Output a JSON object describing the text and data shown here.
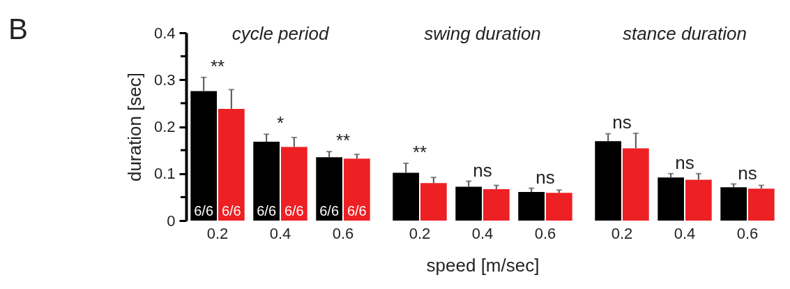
{
  "chart_data": [
    {
      "type": "bar",
      "title": "cycle period",
      "ylabel": "duration [sec]",
      "categories": [
        "0.2",
        "0.4",
        "0.6"
      ],
      "series": [
        {
          "color": "#000000",
          "values": [
            0.276,
            0.168,
            0.135
          ],
          "errors": [
            0.029,
            0.016,
            0.012
          ]
        },
        {
          "color": "#ed2024",
          "values": [
            0.238,
            0.157,
            0.132
          ],
          "errors": [
            0.041,
            0.02,
            0.009
          ]
        }
      ],
      "ylim": [
        0,
        0.4
      ],
      "yticks": [
        0,
        {
          "value": 0.05,
          "label": null
        },
        0.1,
        {
          "value": 0.15,
          "label": null
        },
        0.2,
        {
          "value": 0.25,
          "label": null
        },
        0.3,
        {
          "value": 0.35,
          "label": null
        },
        0.4
      ],
      "annotations": [
        "B",
        "**",
        "*",
        "**",
        {
          "text": "6/6",
          "x": "0.2",
          "y": 0
        },
        {
          "text": "6/6",
          "x": "0.2",
          "y": 0
        },
        {
          "text": "6/6",
          "x": "0.4",
          "y": 0
        },
        {
          "text": "6/6",
          "x": "0.4",
          "y": 0
        },
        {
          "text": "6/6",
          "x": "0.6",
          "y": 0
        },
        {
          "text": "6/6",
          "x": "0.6",
          "y": 0
        }
      ],
      "grid": false,
      "legend": false
    },
    {
      "type": "bar",
      "title": "swing duration",
      "xlabel": "speed [m/sec]",
      "categories": [
        "0.2",
        "0.4",
        "0.6"
      ],
      "series": [
        {
          "color": "#000000",
          "values": [
            0.102,
            0.072,
            0.061
          ],
          "errors": [
            0.02,
            0.012,
            0.008
          ]
        },
        {
          "color": "#ed2024",
          "values": [
            0.08,
            0.067,
            0.059
          ],
          "errors": [
            0.012,
            0.008,
            0.006
          ]
        }
      ],
      "ylim": [
        0,
        0.4
      ],
      "tick_labels": "x",
      "annotations": [
        "**",
        "ns",
        "ns"
      ],
      "grid": false,
      "legend": false
    },
    {
      "type": "bar",
      "title": "stance duration",
      "categories": [
        "0.2",
        "0.4",
        "0.6"
      ],
      "series": [
        {
          "color": "#000000",
          "values": [
            0.169,
            0.092,
            0.071
          ],
          "errors": [
            0.016,
            0.008,
            0.007
          ]
        },
        {
          "color": "#ed2024",
          "values": [
            0.154,
            0.087,
            0.068
          ],
          "errors": [
            0.032,
            0.013,
            0.007
          ]
        }
      ],
      "ylim": [
        0,
        0.4
      ],
      "tick_labels": "x",
      "annotations": [
        "ns",
        "ns",
        "ns"
      ],
      "grid": false,
      "legend": false
    }
  ]
}
